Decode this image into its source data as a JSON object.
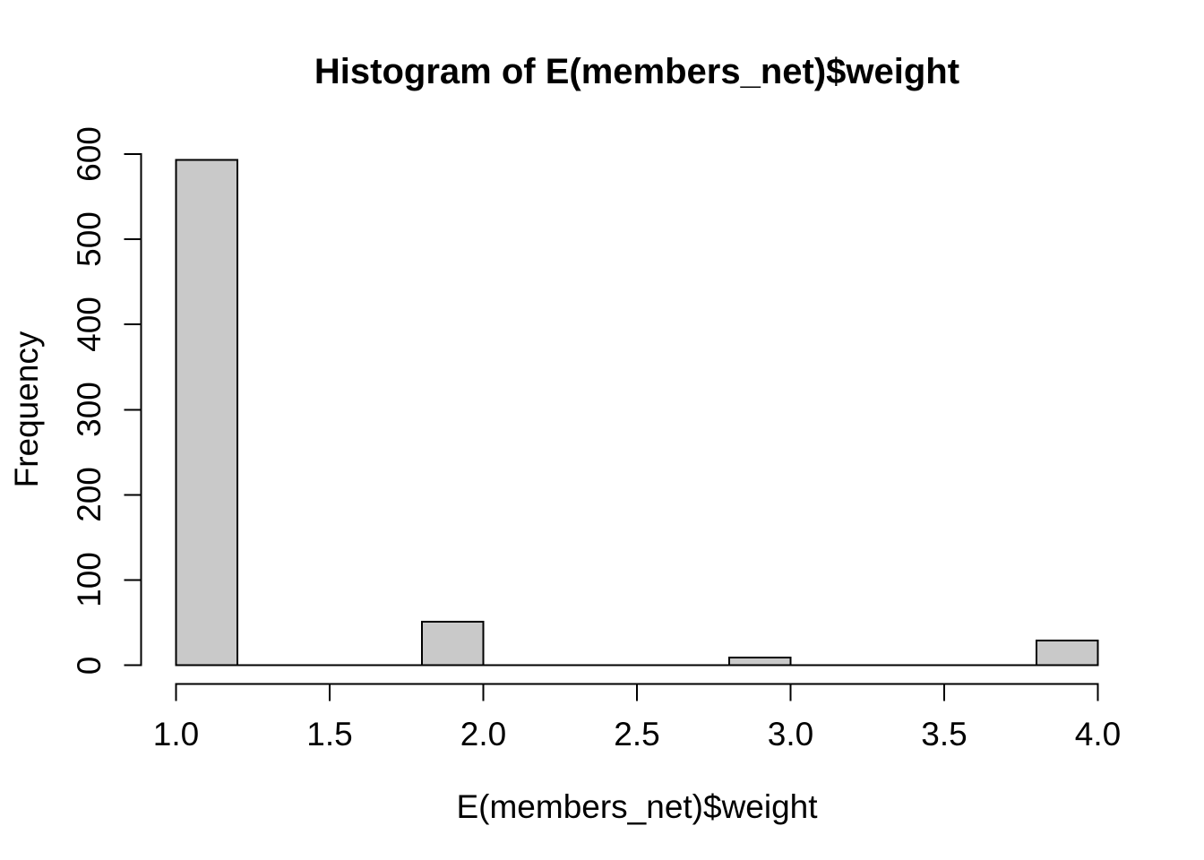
{
  "page": {
    "background": "#ffffff",
    "text_color": "#000000"
  },
  "chart_data": {
    "type": "bar",
    "subtype": "histogram",
    "title": "Histogram of E(members_net)$weight",
    "xlabel": "E(members_net)$weight",
    "ylabel": "Frequency",
    "xlim": [
      1.0,
      4.0
    ],
    "ylim": [
      0,
      600
    ],
    "bin_start": 1.0,
    "bin_width": 0.2,
    "counts": [
      593,
      0,
      0,
      0,
      51,
      0,
      0,
      0,
      0,
      9,
      0,
      0,
      0,
      0,
      29
    ],
    "bars": [
      {
        "x0": 1.0,
        "x1": 1.2,
        "count": 593
      },
      {
        "x0": 1.8,
        "x1": 2.0,
        "count": 51
      },
      {
        "x0": 2.8,
        "x1": 3.0,
        "count": 9
      },
      {
        "x0": 3.8,
        "x1": 4.0,
        "count": 29
      }
    ],
    "x_ticks": [
      1.0,
      1.5,
      2.0,
      2.5,
      3.0,
      3.5,
      4.0
    ],
    "x_tick_labels": [
      "1.0",
      "1.5",
      "2.0",
      "2.5",
      "3.0",
      "3.5",
      "4.0"
    ],
    "y_ticks": [
      0,
      100,
      200,
      300,
      400,
      500,
      600
    ],
    "y_tick_labels": [
      "0",
      "100",
      "200",
      "300",
      "400",
      "500",
      "600"
    ],
    "bar_fill": "#c9c9c9",
    "bar_stroke": "#000000",
    "axis_color": "#000000",
    "grid": false,
    "legend": false
  }
}
